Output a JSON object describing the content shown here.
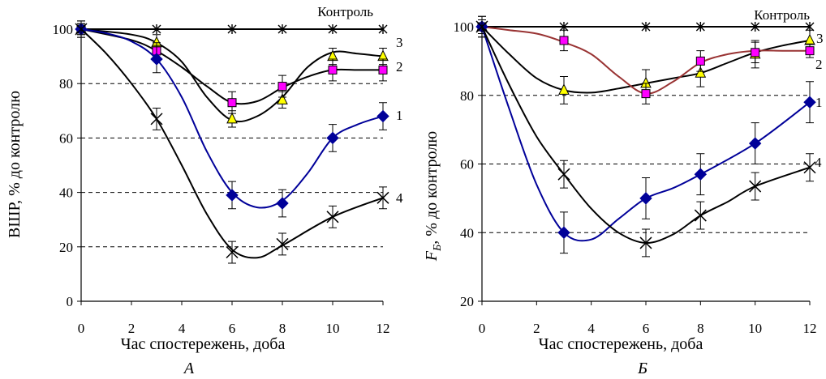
{
  "chart_data": [
    {
      "type": "line",
      "panel_label": "А",
      "xlabel": "Час спостережень, доба",
      "ylabel": "ВШР, % до контролю",
      "xlim": [
        0,
        12
      ],
      "ylim": [
        0,
        100
      ],
      "x_ticks": [
        0,
        2,
        4,
        6,
        8,
        10,
        12
      ],
      "y_ticks": [
        0,
        20,
        40,
        60,
        80,
        100
      ],
      "grid": "horizontal dashed at 20, 40, 60, 80",
      "series": [
        {
          "name": "Контроль",
          "color": "#000000",
          "marker": "asterisk",
          "x": [
            0,
            3,
            6,
            8,
            10,
            12
          ],
          "y": [
            100,
            100,
            100,
            100,
            100,
            100
          ],
          "err": [
            0,
            0,
            0,
            0,
            0,
            0
          ]
        },
        {
          "name": "3",
          "color": "#ffff00",
          "marker": "triangle",
          "x": [
            0,
            3,
            6,
            8,
            10,
            12
          ],
          "y": [
            100,
            95,
            67,
            74,
            90,
            90
          ],
          "err": [
            2,
            3,
            3,
            3,
            3,
            3
          ],
          "curve": [
            [
              0,
              100
            ],
            [
              2,
              98
            ],
            [
              3,
              95
            ],
            [
              4,
              88
            ],
            [
              5,
              75
            ],
            [
              6,
              66.5
            ],
            [
              7,
              68
            ],
            [
              8,
              75
            ],
            [
              9,
              86
            ],
            [
              10,
              91.5
            ],
            [
              11,
              91
            ],
            [
              12,
              90
            ]
          ]
        },
        {
          "name": "2",
          "color": "#ff00ff",
          "marker": "square",
          "x": [
            0,
            3,
            6,
            8,
            10,
            12
          ],
          "y": [
            100,
            92,
            73,
            79,
            85,
            85
          ],
          "err": [
            2,
            3,
            4,
            4,
            4,
            4
          ],
          "curve": [
            [
              0,
              100
            ],
            [
              2,
              96
            ],
            [
              3,
              92
            ],
            [
              4,
              86
            ],
            [
              5,
              79
            ],
            [
              6,
              73
            ],
            [
              7,
              73.5
            ],
            [
              8,
              78.5
            ],
            [
              9,
              82.5
            ],
            [
              10,
              85
            ],
            [
              11,
              85
            ],
            [
              12,
              85
            ]
          ]
        },
        {
          "name": "1",
          "color": "#000099",
          "marker": "diamond",
          "x": [
            0,
            3,
            6,
            8,
            10,
            12
          ],
          "y": [
            100,
            89,
            39,
            36,
            60,
            68
          ],
          "err": [
            3,
            5,
            5,
            5,
            5,
            5
          ],
          "curve": [
            [
              0,
              100
            ],
            [
              1,
              98.5
            ],
            [
              2,
              95.5
            ],
            [
              3,
              89
            ],
            [
              4,
              75
            ],
            [
              5,
              55
            ],
            [
              6,
              40
            ],
            [
              7,
              34.5
            ],
            [
              8,
              37
            ],
            [
              9,
              47
            ],
            [
              10,
              60
            ],
            [
              11,
              65
            ],
            [
              12,
              68
            ]
          ]
        },
        {
          "name": "4",
          "color": "#000000",
          "marker": "x",
          "x": [
            0,
            3,
            6,
            8,
            10,
            12
          ],
          "y": [
            100,
            67,
            18,
            21,
            31,
            38
          ],
          "err": [
            3,
            4,
            4,
            4,
            4,
            4
          ],
          "curve": [
            [
              0,
              100
            ],
            [
              1,
              91
            ],
            [
              2,
              80
            ],
            [
              3,
              67
            ],
            [
              4,
              50
            ],
            [
              5,
              32
            ],
            [
              6,
              19
            ],
            [
              7,
              16
            ],
            [
              8,
              20.5
            ],
            [
              10,
              31
            ],
            [
              12,
              38
            ]
          ]
        }
      ]
    },
    {
      "type": "line",
      "panel_label": "Б",
      "xlabel": "Час спостережень, доба",
      "ylabel": "FБ, % до контролю",
      "ylabel_main": "F",
      "ylabel_sub": "Б",
      "ylabel_rest": ", % до контролю",
      "xlim": [
        0,
        12
      ],
      "ylim": [
        20,
        100
      ],
      "x_ticks": [
        0,
        2,
        4,
        6,
        8,
        10,
        12
      ],
      "y_ticks": [
        20,
        40,
        60,
        80,
        100
      ],
      "grid": "horizontal dashed at 40, 60, 80",
      "series": [
        {
          "name": "Контроль",
          "color": "#000000",
          "marker": "asterisk",
          "x": [
            0,
            3,
            6,
            8,
            10,
            12
          ],
          "y": [
            100,
            100,
            100,
            100,
            100,
            100
          ],
          "err": [
            0,
            0,
            0,
            0,
            0,
            0
          ]
        },
        {
          "name": "3",
          "color": "#ffff00",
          "marker": "triangle",
          "x": [
            0,
            3,
            6,
            8,
            10,
            12
          ],
          "y": [
            100,
            81.5,
            83.5,
            86.5,
            92,
            96
          ],
          "err": [
            2,
            4,
            4,
            4,
            4,
            3
          ],
          "curve": [
            [
              0,
              100
            ],
            [
              1,
              92
            ],
            [
              2,
              85
            ],
            [
              3,
              81.5
            ],
            [
              4,
              80.8
            ],
            [
              5,
              82
            ],
            [
              6,
              83.5
            ],
            [
              7,
              85
            ],
            [
              8,
              86.5
            ],
            [
              9,
              89.5
            ],
            [
              10,
              92.5
            ],
            [
              11,
              94.5
            ],
            [
              12,
              96
            ]
          ]
        },
        {
          "name": "2",
          "color": "#ff00ff",
          "line_color": "#993333",
          "marker": "square",
          "x": [
            0,
            3,
            6,
            8,
            10,
            12
          ],
          "y": [
            100,
            96,
            80.5,
            90,
            92.5,
            93
          ],
          "err": [
            2,
            3,
            3,
            3,
            3,
            2
          ],
          "curve": [
            [
              0,
              100
            ],
            [
              1,
              99
            ],
            [
              2,
              98
            ],
            [
              3,
              95.5
            ],
            [
              4,
              92
            ],
            [
              5,
              85.5
            ],
            [
              6,
              80.5
            ],
            [
              7,
              84
            ],
            [
              8,
              89.5
            ],
            [
              9,
              92
            ],
            [
              10,
              93
            ],
            [
              11,
              93
            ],
            [
              12,
              93
            ]
          ]
        },
        {
          "name": "1",
          "color": "#000099",
          "marker": "diamond",
          "x": [
            0,
            3,
            6,
            8,
            10,
            12
          ],
          "y": [
            100,
            40,
            50,
            57,
            66,
            78
          ],
          "err": [
            3,
            6,
            6,
            6,
            6,
            6
          ],
          "curve": [
            [
              0,
              100
            ],
            [
              1,
              76
            ],
            [
              2,
              54
            ],
            [
              3,
              40
            ],
            [
              4,
              38
            ],
            [
              5,
              44
            ],
            [
              6,
              50
            ],
            [
              7,
              53
            ],
            [
              8,
              57
            ],
            [
              10,
              66
            ],
            [
              12,
              78
            ]
          ]
        },
        {
          "name": "4",
          "color": "#000000",
          "marker": "x",
          "x": [
            0,
            3,
            6,
            8,
            10,
            12
          ],
          "y": [
            100,
            57,
            37,
            45,
            53.5,
            59
          ],
          "err": [
            3,
            4,
            4,
            4,
            4,
            4
          ],
          "curve": [
            [
              0,
              100
            ],
            [
              1,
              83
            ],
            [
              2,
              68
            ],
            [
              3,
              57
            ],
            [
              4,
              47
            ],
            [
              5,
              40
            ],
            [
              6,
              37
            ],
            [
              7,
              39.5
            ],
            [
              8,
              45
            ],
            [
              9,
              49
            ],
            [
              10,
              53.5
            ],
            [
              12,
              59
            ]
          ]
        }
      ]
    }
  ]
}
